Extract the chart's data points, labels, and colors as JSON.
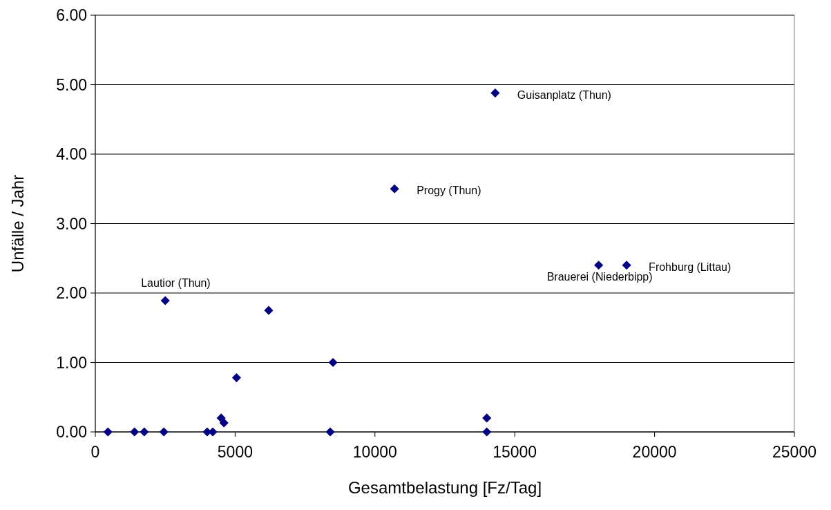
{
  "chart_data": {
    "type": "scatter",
    "xlabel": "Gesamtbelastung [Fz/Tag]",
    "ylabel": "Unfälle / Jahr",
    "x": [
      450,
      1400,
      1750,
      2450,
      2500,
      4000,
      4200,
      4500,
      4600,
      5050,
      6200,
      8500,
      8400,
      14000,
      14000,
      14300,
      10700,
      18000,
      19000
    ],
    "series": [
      {
        "color": "#000080",
        "values": [
          0,
          0,
          0,
          0,
          1.89,
          0,
          0,
          0.2,
          0.13,
          0.78,
          1.75,
          1.0,
          0,
          0.2,
          0,
          4.88,
          3.5,
          2.4,
          2.4
        ]
      }
    ],
    "xlim": [
      0,
      25000
    ],
    "xticks": [
      0,
      5000,
      10000,
      15000,
      20000,
      25000
    ],
    "ylim": [
      0,
      6
    ],
    "yticks": [
      {
        "value": 0,
        "label": "0.00"
      },
      {
        "value": 1,
        "label": "1.00"
      },
      {
        "value": 2,
        "label": "2.00"
      },
      {
        "value": 3,
        "label": "3.00"
      },
      {
        "value": 4,
        "label": "4.00"
      },
      {
        "value": 5,
        "label": "5.00"
      },
      {
        "value": 6,
        "label": "6.00"
      }
    ],
    "grid": "y",
    "marker": "diamond",
    "annotations": [
      {
        "text": "Lautior (Thun)",
        "x": 2500,
        "y": 1.89
      },
      {
        "text": "Guisanplatz (Thun)",
        "x": 14300,
        "y": 4.88
      },
      {
        "text": "Progy (Thun)",
        "x": 10700,
        "y": 3.5
      },
      {
        "text": "Brauerei (Niederbipp)",
        "x": 18000,
        "y": 2.4
      },
      {
        "text": "Frohburg (Littau)",
        "x": 19000,
        "y": 2.4
      }
    ]
  }
}
